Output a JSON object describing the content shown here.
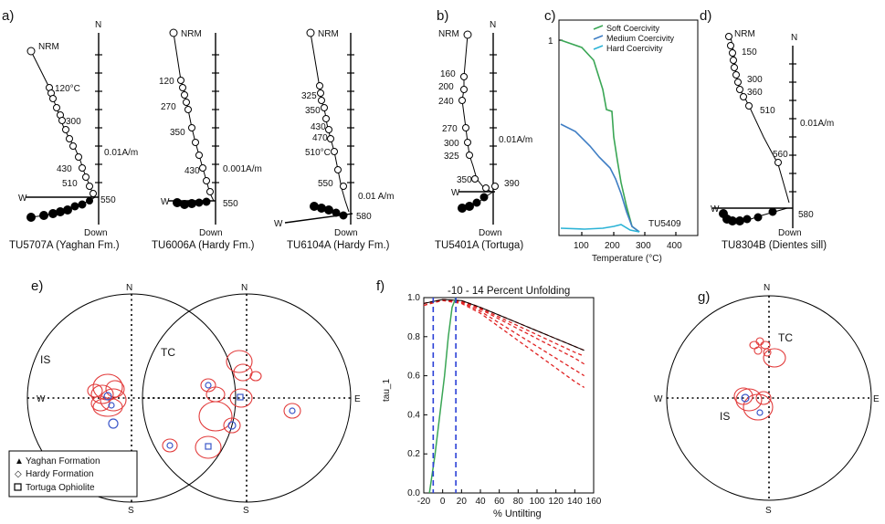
{
  "panels": {
    "a": {
      "label": "a)"
    },
    "b": {
      "label": "b)"
    },
    "c": {
      "label": "c)"
    },
    "d": {
      "label": "d)"
    },
    "e": {
      "label": "e)"
    },
    "f": {
      "label": "f)"
    },
    "g": {
      "label": "g)"
    }
  },
  "zijderveld": [
    {
      "id": "TU5707A",
      "caption": "TU5707A (Yaghan Fm.)",
      "nrm": "NRM",
      "steps": [
        "120°C",
        "300",
        "430",
        "510",
        "550"
      ],
      "scale": "0.01A/m",
      "n": "N",
      "w": "W",
      "down": "Down"
    },
    {
      "id": "TU6006A",
      "caption": "TU6006A (Hardy Fm.)",
      "nrm": "NRM",
      "steps": [
        "120",
        "270",
        "350",
        "430",
        "550"
      ],
      "scale": "0.001A/m",
      "n": "N",
      "w": "W",
      "down": "Down"
    },
    {
      "id": "TU6104A",
      "caption": "TU6104A (Hardy Fm.)",
      "nrm": "NRM",
      "steps": [
        "325",
        "350",
        "430",
        "470",
        "510°C",
        "550",
        "580"
      ],
      "scale": "0.01 A/m",
      "n": "N",
      "w": "W",
      "down": "Down"
    },
    {
      "id": "TU5401A",
      "caption": "TU5401A (Tortuga)",
      "nrm": "NRM",
      "steps": [
        "160",
        "200",
        "240",
        "270",
        "300",
        "325",
        "350",
        "390"
      ],
      "scale": "0.01A/m",
      "n": "N",
      "w": "W",
      "down": "Down"
    },
    {
      "id": "TU8304B",
      "caption": "TU8304B (Dientes sill)",
      "nrm": "NRM",
      "steps": [
        "150",
        "300",
        "360",
        "510",
        "560",
        "580"
      ],
      "scale": "0.01A/m",
      "n": "N",
      "w": "W",
      "down": "Down"
    }
  ],
  "lowrie": {
    "legend": [
      "Soft Coercivity",
      "Medium Coercivity",
      "Hard Coercivity"
    ],
    "sample": "TU5409",
    "xlabel": "Temperature (°C)",
    "xticks": [
      "100",
      "200",
      "300",
      "400"
    ],
    "ytick": "1",
    "colors": {
      "soft": "#3aa655",
      "medium": "#3f7ec4",
      "hard": "#2bb3d6"
    }
  },
  "stereonets": {
    "e": {
      "left_tag": "IS",
      "right_tag": "TC",
      "n": "N",
      "s": "S",
      "w": "W",
      "e": "E",
      "legend": [
        "Yaghan Formation",
        "Hardy Formation",
        "Tortuga Ophiolite"
      ]
    },
    "g": {
      "tc_tag": "TC",
      "is_tag": "IS",
      "n": "N",
      "s": "S",
      "w": "W",
      "e": "E"
    }
  },
  "chart_data": {
    "type": "line",
    "title": "-10 - 14 Percent Unfolding",
    "xlabel": "% Untilting",
    "ylabel": "tau_1",
    "xlim": [
      -20,
      160
    ],
    "ylim": [
      0,
      1.0
    ],
    "xticks": [
      "-20",
      "0",
      "20",
      "40",
      "60",
      "80",
      "100",
      "120",
      "140",
      "160"
    ],
    "xtick_labels_shown": [
      "-20",
      "0",
      "20",
      "40",
      "60",
      "80",
      "100",
      "120",
      "140",
      "160"
    ],
    "yticks": [
      "0.0",
      "0.2",
      "0.4",
      "0.6",
      "0.8",
      "1.0"
    ],
    "bounds": [
      -10,
      14
    ],
    "series": [
      {
        "x": [
          -20,
          0,
          20,
          40,
          60,
          80,
          100,
          120,
          140,
          150
        ],
        "y": [
          0.97,
          0.99,
          0.985,
          0.95,
          0.91,
          0.87,
          0.83,
          0.79,
          0.75,
          0.73
        ]
      },
      {
        "x": [
          -20,
          0,
          20,
          40,
          60,
          80,
          100,
          120,
          140,
          150
        ],
        "y": [
          0.97,
          0.99,
          0.98,
          0.94,
          0.89,
          0.84,
          0.79,
          0.74,
          0.69,
          0.66
        ]
      },
      {
        "x": [
          -20,
          0,
          20,
          40,
          60,
          80,
          100,
          120,
          140,
          150
        ],
        "y": [
          0.96,
          0.99,
          0.975,
          0.93,
          0.87,
          0.81,
          0.75,
          0.69,
          0.63,
          0.6
        ]
      },
      {
        "x": [
          -20,
          0,
          20,
          40,
          60,
          80,
          100,
          120,
          140,
          150
        ],
        "y": [
          0.96,
          0.985,
          0.97,
          0.92,
          0.85,
          0.78,
          0.71,
          0.64,
          0.57,
          0.54
        ]
      },
      {
        "x": [
          -20,
          0,
          20,
          40,
          60,
          80,
          100,
          120,
          140,
          150
        ],
        "y": [
          0.97,
          0.99,
          0.98,
          0.945,
          0.9,
          0.855,
          0.81,
          0.765,
          0.72,
          0.7
        ]
      }
    ],
    "cdf": {
      "x": [
        -14,
        -8,
        -3,
        2,
        6,
        10,
        14
      ],
      "y": [
        0.0,
        0.2,
        0.4,
        0.6,
        0.8,
        0.95,
        1.0
      ]
    }
  }
}
